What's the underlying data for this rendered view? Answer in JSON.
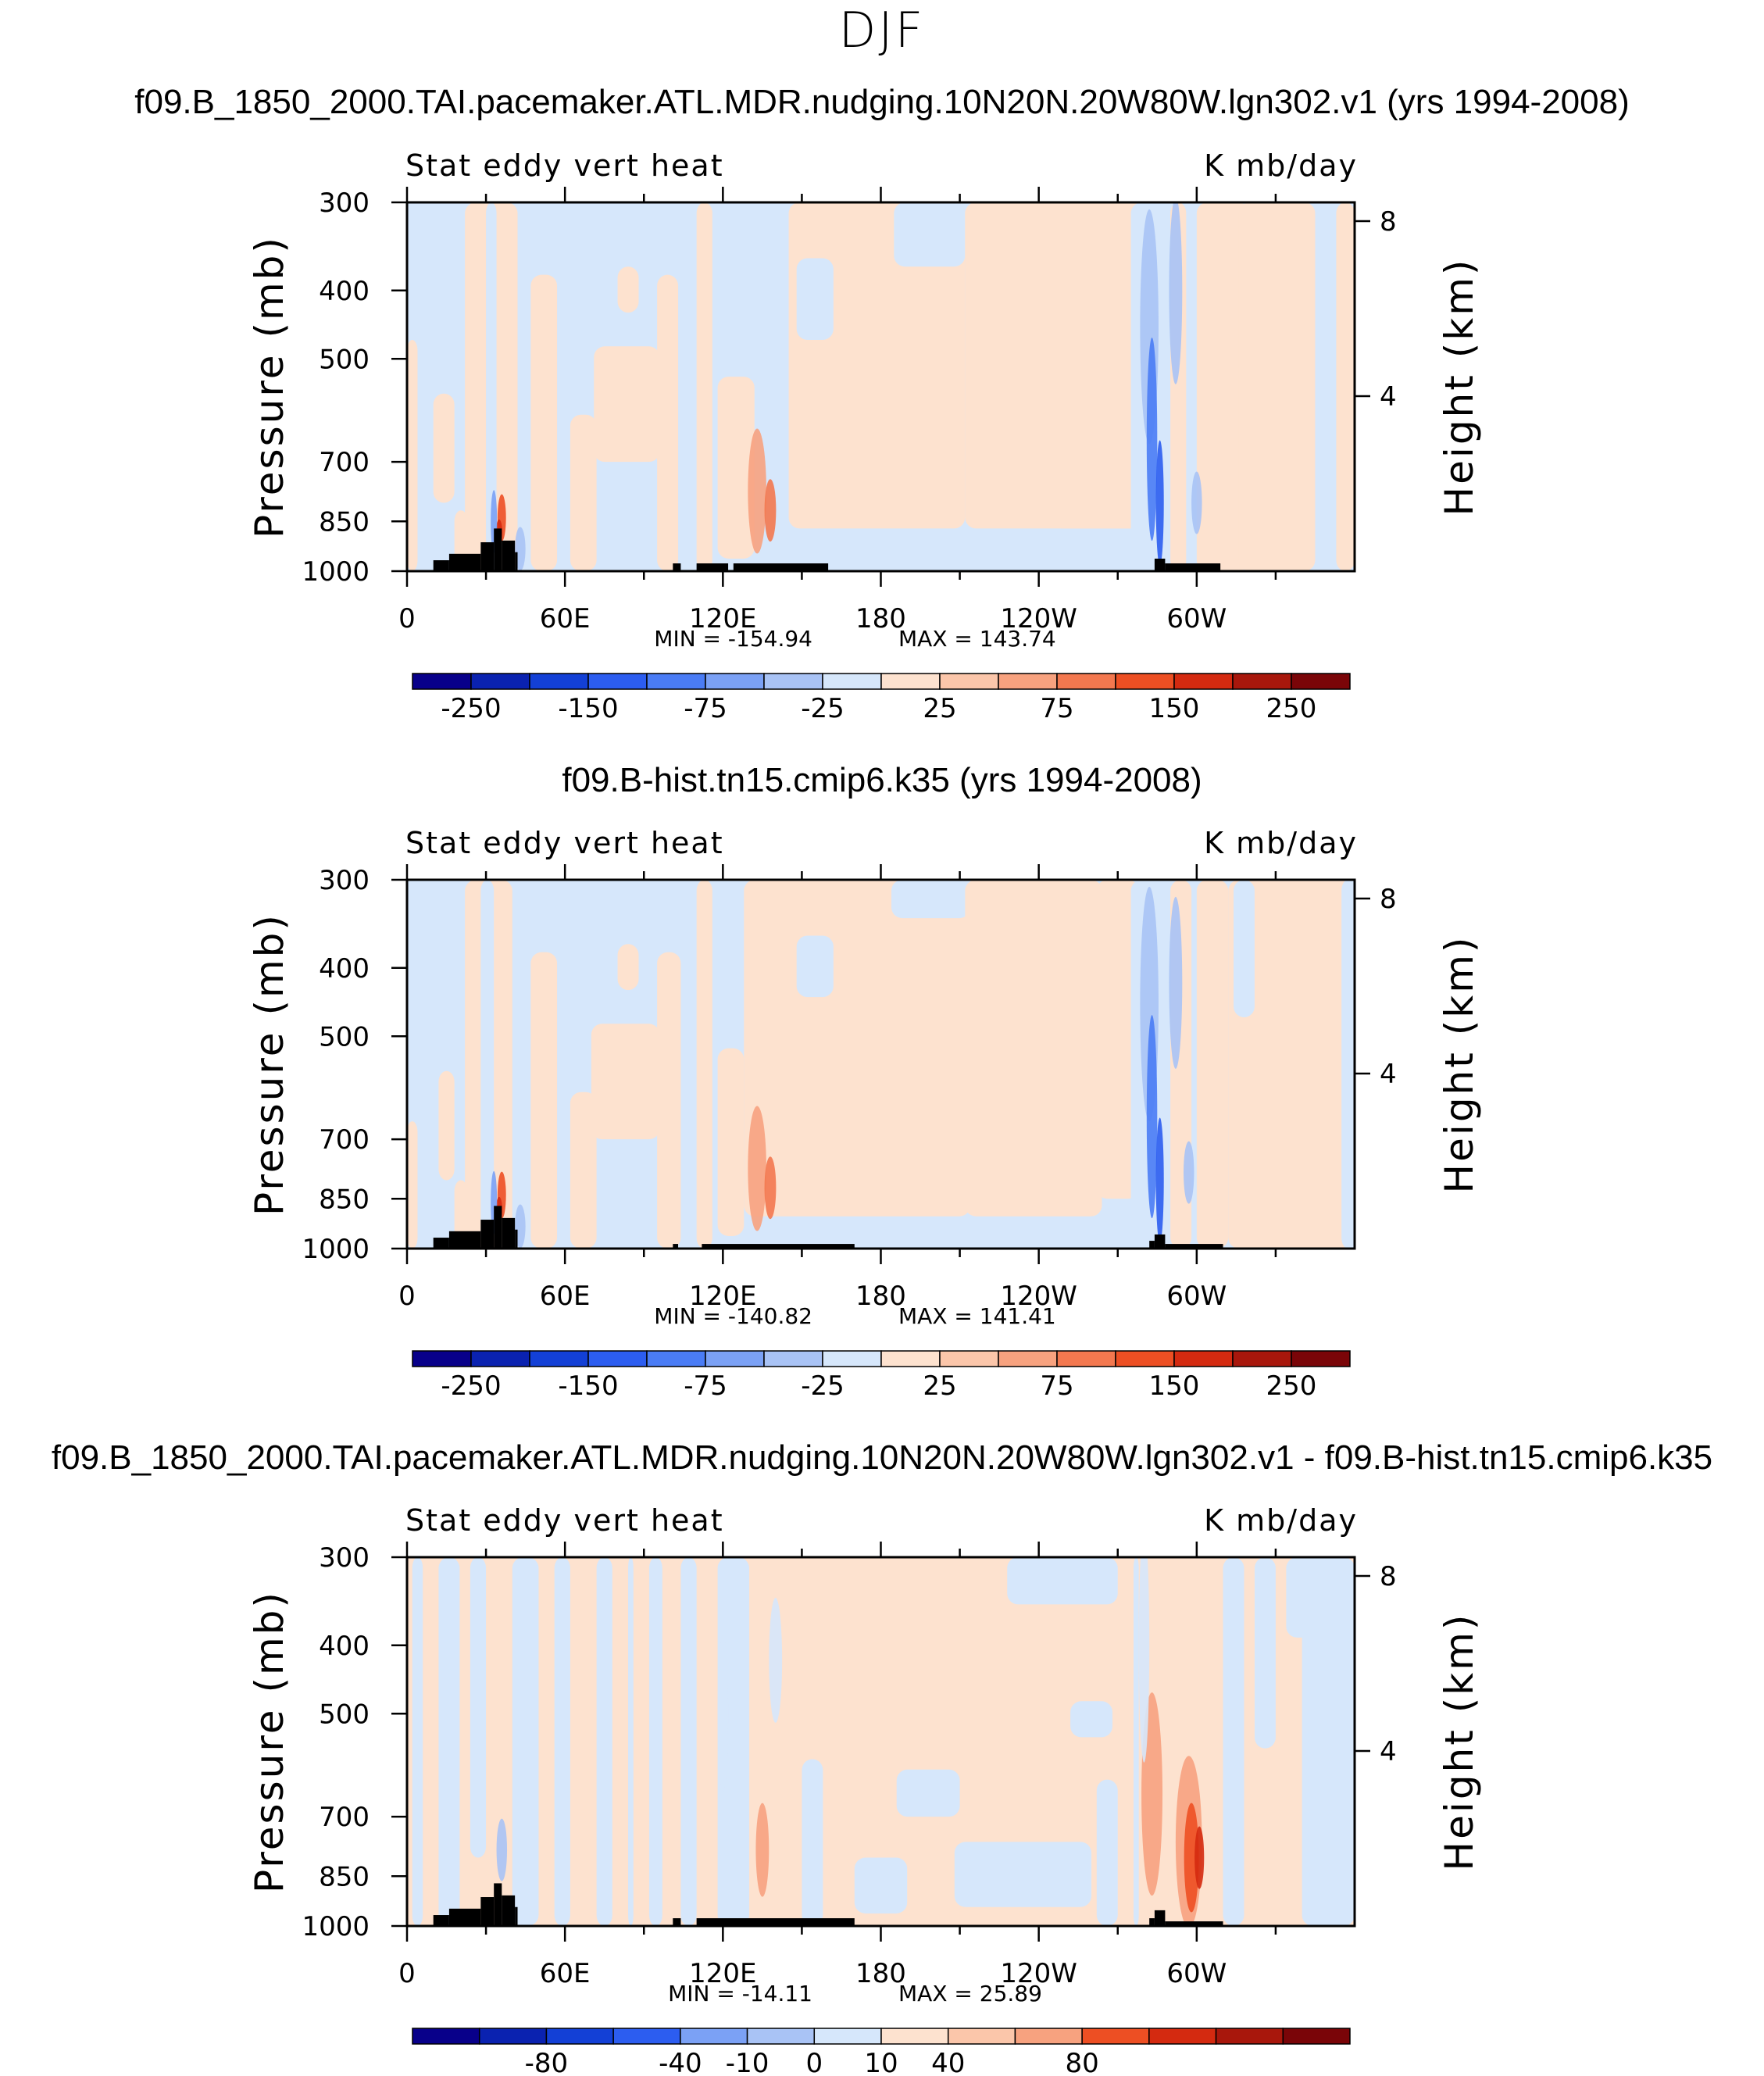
{
  "figure_title": "DJF",
  "chart_data": [
    {
      "type": "heatmap",
      "title": "f09.B_1850_2000.TAI.pacemaker.ATL.MDR.nudging.10N20N.20W80W.lgn302.v1 (yrs 1994-2008)",
      "left_label": "Stat eddy vert heat",
      "right_label": "K mb/day",
      "ylabel": "Pressure (mb)",
      "ylabel_right": "Height (km)",
      "x_ticks": [
        "0",
        "60E",
        "120E",
        "180",
        "120W",
        "60W"
      ],
      "y_ticks": [
        "300",
        "400",
        "500",
        "700",
        "850",
        "1000"
      ],
      "height_ticks": [
        "8",
        "4"
      ],
      "min_label": "MIN = -154.94",
      "max_label": "MAX = 143.74",
      "min": -154.94,
      "max": 143.74,
      "colorbar_levels": [
        -250,
        -200,
        -150,
        -100,
        -75,
        -50,
        -25,
        0,
        25,
        50,
        75,
        100,
        150,
        200,
        250
      ],
      "colorbar_labels": [
        "-250",
        "-150",
        "-75",
        "-25",
        "25",
        "75",
        "150",
        "250"
      ]
    },
    {
      "type": "heatmap",
      "title": "f09.B-hist.tn15.cmip6.k35 (yrs 1994-2008)",
      "left_label": "Stat eddy vert heat",
      "right_label": "K mb/day",
      "ylabel": "Pressure (mb)",
      "ylabel_right": "Height (km)",
      "x_ticks": [
        "0",
        "60E",
        "120E",
        "180",
        "120W",
        "60W"
      ],
      "y_ticks": [
        "300",
        "400",
        "500",
        "700",
        "850",
        "1000"
      ],
      "height_ticks": [
        "8",
        "4"
      ],
      "min_label": "MIN = -140.82",
      "max_label": "MAX = 141.41",
      "min": -140.82,
      "max": 141.41,
      "colorbar_levels": [
        -250,
        -200,
        -150,
        -100,
        -75,
        -50,
        -25,
        0,
        25,
        50,
        75,
        100,
        150,
        200,
        250
      ],
      "colorbar_labels": [
        "-250",
        "-150",
        "-75",
        "-25",
        "25",
        "75",
        "150",
        "250"
      ]
    },
    {
      "type": "heatmap",
      "title": "f09.B_1850_2000.TAI.pacemaker.ATL.MDR.nudging.10N20N.20W80W.lgn302.v1 - f09.B-hist.tn15.cmip6.k35",
      "left_label": "Stat eddy vert heat",
      "right_label": "K mb/day",
      "ylabel": "Pressure (mb)",
      "ylabel_right": "Height (km)",
      "x_ticks": [
        "0",
        "60E",
        "120E",
        "180",
        "120W",
        "60W"
      ],
      "y_ticks": [
        "300",
        "400",
        "500",
        "700",
        "850",
        "1000"
      ],
      "height_ticks": [
        "8",
        "4"
      ],
      "min_label": "MIN = -14.11",
      "max_label": "MAX =  25.89",
      "min": -14.11,
      "max": 25.89,
      "colorbar_levels": [
        -80,
        -60,
        -40,
        -20,
        -10,
        -5,
        0,
        5,
        10,
        20,
        40,
        60,
        80
      ],
      "colorbar_labels": [
        "-80",
        "-40",
        "-10",
        "0",
        "10",
        "40",
        "80"
      ]
    }
  ],
  "colors": {
    "colorbar": [
      "#08008a",
      "#0a22b0",
      "#1340d6",
      "#2c5df0",
      "#4a7cf5",
      "#7ba1f5",
      "#a9c3f5",
      "#d6e7fb",
      "#fde2cf",
      "#fbc6aa",
      "#f7a27f",
      "#f3784f",
      "#ed4f23",
      "#d42a10",
      "#a8170c",
      "#7a0508"
    ],
    "neg_light": "#d6e7fb",
    "pos_light": "#fde2cf",
    "terrain": "#000000"
  }
}
